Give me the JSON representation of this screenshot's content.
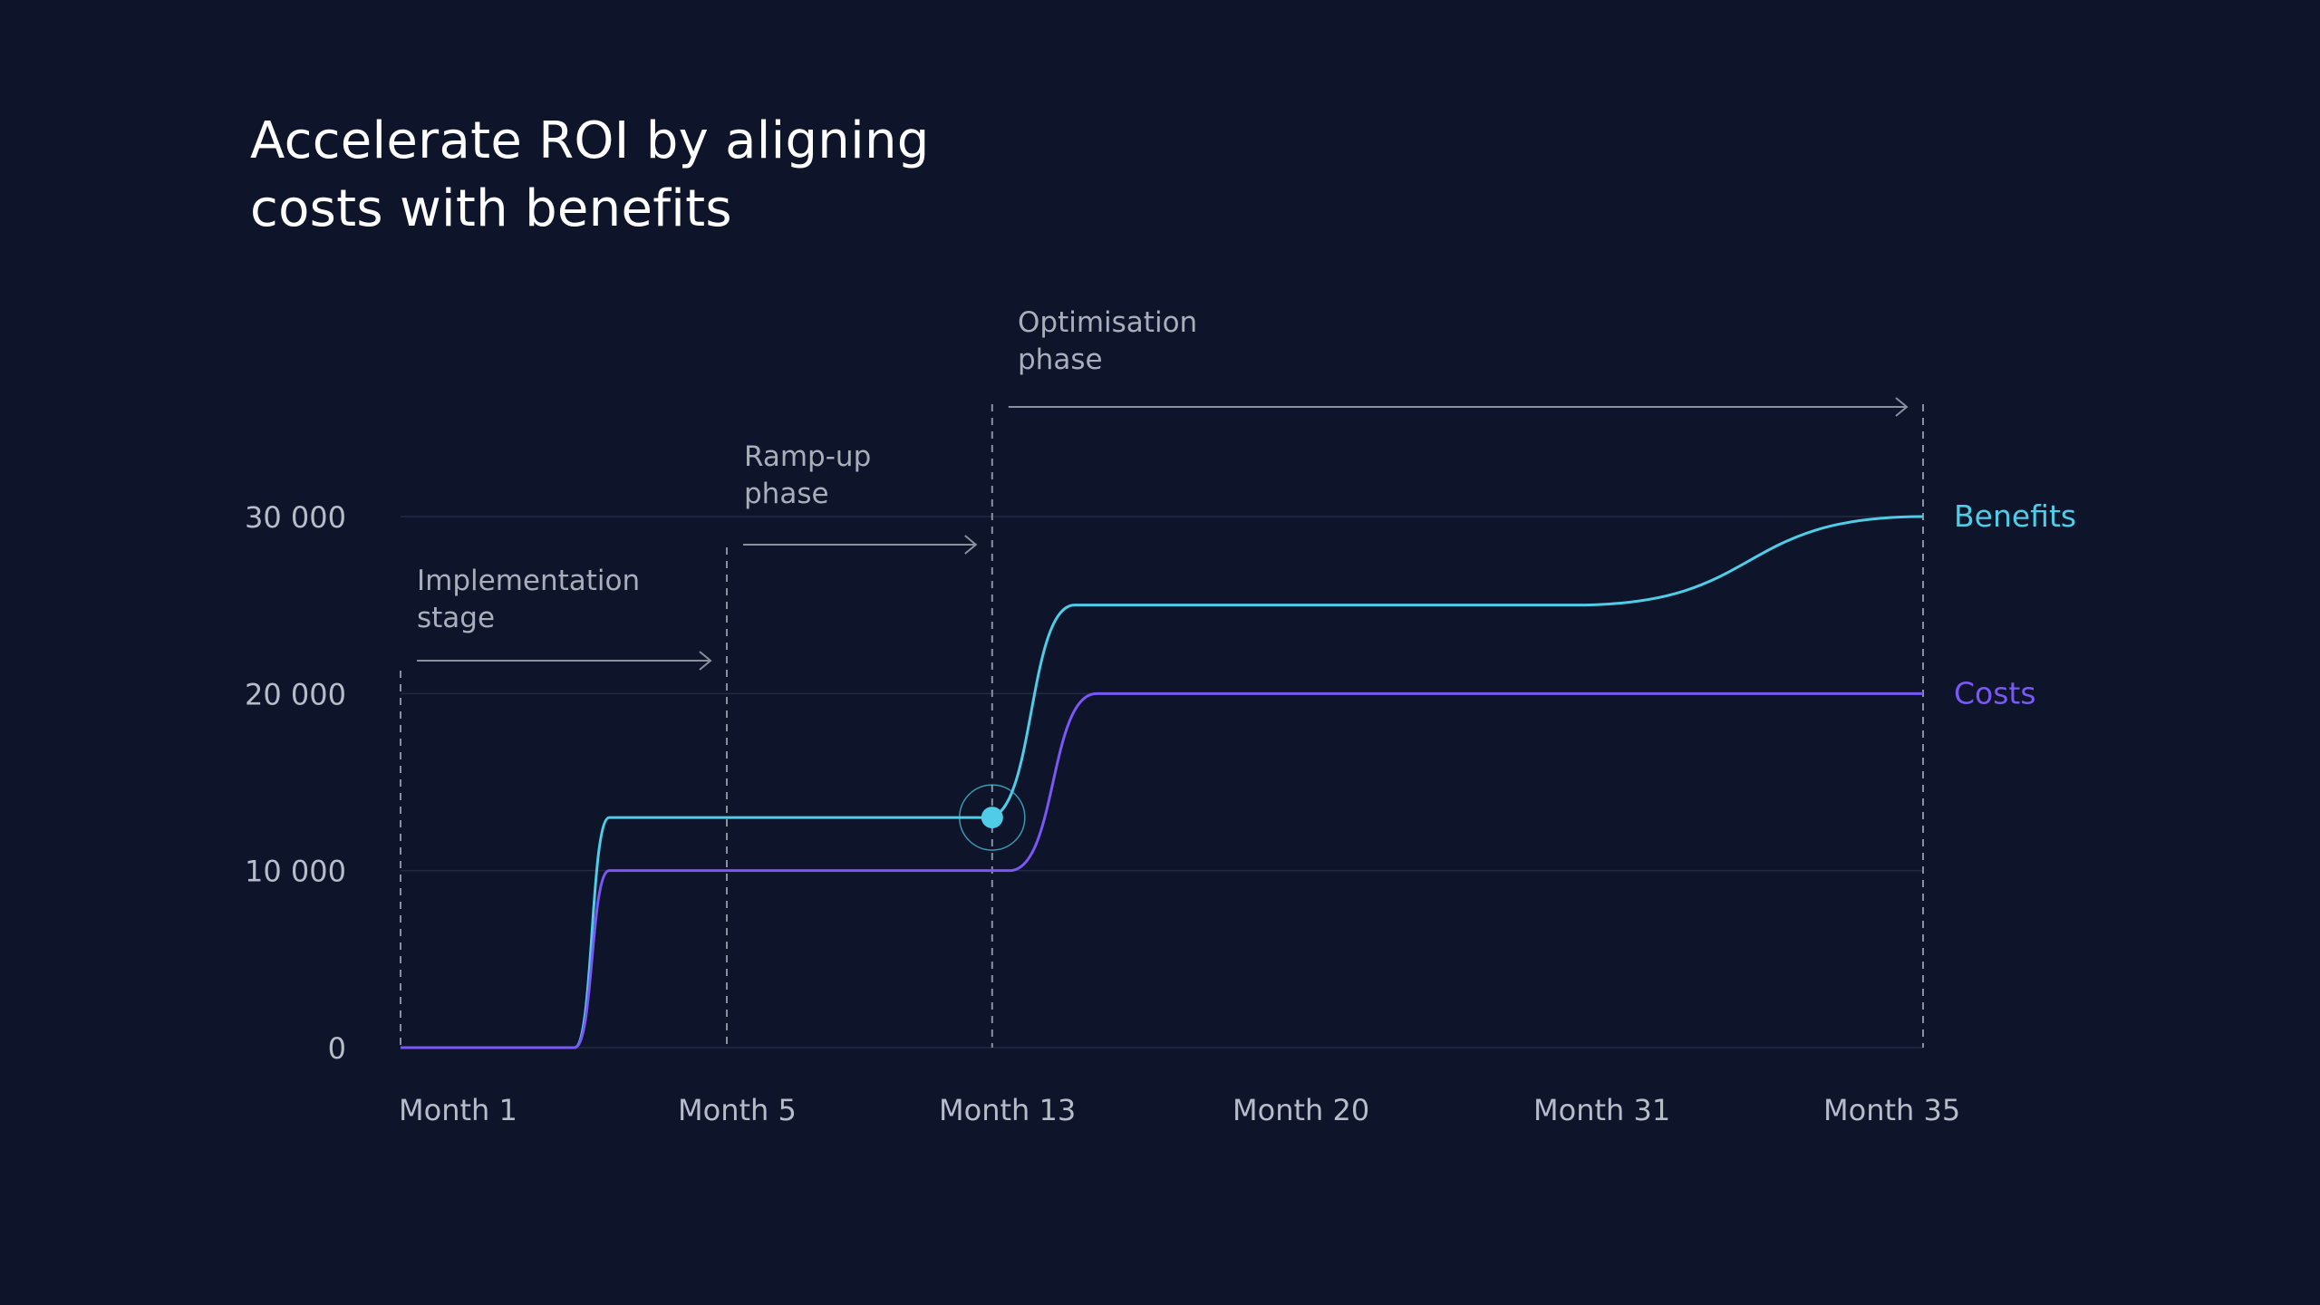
{
  "chart_data": {
    "type": "line",
    "title": [
      "Accelerate ROI by aligning",
      "costs with benefits"
    ],
    "xlabel": "",
    "ylabel": "",
    "categories": [
      "Month 1",
      "Month 5",
      "Month 13",
      "Month 20",
      "Month 31",
      "Month 35"
    ],
    "x_range": [
      0,
      35
    ],
    "ylim": [
      0,
      30000
    ],
    "y_ticks": [
      {
        "value": 0,
        "label": "0"
      },
      {
        "value": 10000,
        "label": "10 000"
      },
      {
        "value": 20000,
        "label": "20 000"
      },
      {
        "value": 30000,
        "label": "30 000"
      }
    ],
    "grid": true,
    "legend": "inline-right",
    "series": [
      {
        "name": "Benefits",
        "color": "#4fcde8",
        "points": [
          [
            0,
            0
          ],
          [
            4,
            0
          ],
          [
            4.8,
            13000
          ],
          [
            13.5,
            13000
          ],
          [
            15.5,
            25000
          ],
          [
            27,
            25000
          ],
          [
            35,
            30000
          ]
        ]
      },
      {
        "name": "Costs",
        "color": "#7b57f5",
        "points": [
          [
            0,
            0
          ],
          [
            4,
            0
          ],
          [
            4.8,
            10000
          ],
          [
            14,
            10000
          ],
          [
            16,
            20000
          ],
          [
            35,
            20000
          ]
        ]
      }
    ],
    "phases": [
      {
        "label": [
          "Implementation",
          "stage"
        ],
        "start": 0,
        "end": 7.5
      },
      {
        "label": [
          "Ramp-up",
          "phase"
        ],
        "start": 7.5,
        "end": 13.6
      },
      {
        "label": [
          "Optimisation",
          "phase"
        ],
        "start": 13.6,
        "end": 35
      }
    ],
    "highlight": {
      "x": 13.6,
      "y": 13000,
      "series": "Benefits"
    }
  }
}
